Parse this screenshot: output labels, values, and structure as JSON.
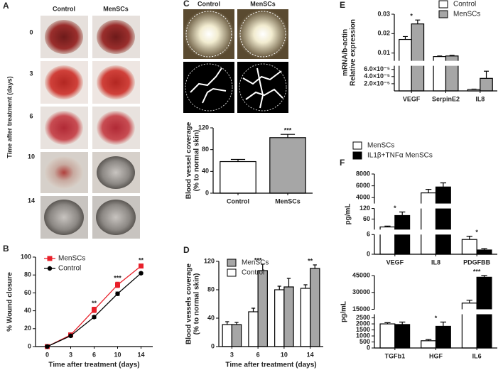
{
  "panel_labels": [
    "A",
    "B",
    "C",
    "D",
    "E",
    "F"
  ],
  "panel_a": {
    "columns": [
      "Control",
      "MenSCs"
    ],
    "rows": [
      "0",
      "3",
      "6",
      "10",
      "14"
    ],
    "y_label": "Time after treatment (days)"
  },
  "panel_c": {
    "columns": [
      "Control",
      "MenSCs"
    ]
  },
  "chart_data": [
    {
      "type": "line",
      "categories": [
        "0",
        "3",
        "6",
        "10",
        "14"
      ],
      "series": [
        {
          "name": "MenSCs",
          "color": "#e8202a",
          "marker": "square",
          "values": [
            0,
            13,
            41,
            69,
            90
          ],
          "errors": [
            1,
            1.5,
            3,
            3,
            2
          ]
        },
        {
          "name": "Control",
          "color": "#000000",
          "marker": "circle",
          "values": [
            0,
            12,
            33,
            59,
            82
          ],
          "errors": [
            1,
            1,
            1.5,
            2,
            1
          ]
        }
      ],
      "ylim": [
        0,
        100
      ],
      "yticks": [
        0,
        20,
        40,
        60,
        80,
        100
      ],
      "y_label": [
        "% Wound closure"
      ],
      "x_label": "Time after treatment (days)",
      "legend": "upper left",
      "annotations": [
        {
          "text": "**",
          "category": "6"
        },
        {
          "text": "***",
          "category": "10"
        },
        {
          "text": "**",
          "category": "14"
        }
      ]
    },
    {
      "type": "bar",
      "categories": [
        "Control",
        "MenSCs"
      ],
      "colors": [
        "#ffffff",
        "#a6a6a6"
      ],
      "values": [
        58,
        102
      ],
      "errors": [
        4,
        6
      ],
      "ylim": [
        0,
        120
      ],
      "yticks": [
        0,
        40,
        80,
        120
      ],
      "y_label": [
        "Blood vessel coverage",
        "(% to normal skin)"
      ],
      "annotations": [
        {
          "text": "***",
          "category": "MenSCs"
        }
      ]
    },
    {
      "type": "bar",
      "categories": [
        "3",
        "6",
        "10",
        "14"
      ],
      "series": [
        {
          "name": "Control",
          "color": "#ffffff",
          "values": [
            31,
            49,
            80,
            82
          ],
          "errors": [
            4,
            5,
            5,
            5
          ]
        },
        {
          "name": "MenSCs",
          "color": "#a6a6a6",
          "values": [
            31,
            107,
            84,
            110
          ],
          "errors": [
            3,
            9,
            12,
            5
          ]
        }
      ],
      "ylim": [
        0,
        120
      ],
      "yticks": [
        0,
        40,
        80,
        120
      ],
      "y_label": [
        "Blood vessels coverage",
        "(% to normal skin)"
      ],
      "x_label": "Time after treatment (days)",
      "legend": "upper left",
      "legend_reversed": true,
      "annotations": [
        {
          "text": "***",
          "category": "6"
        },
        {
          "text": "**",
          "category": "14"
        }
      ]
    },
    {
      "type": "broken-bar",
      "categories": [
        "VEGF",
        "SerpinE2",
        "IL8"
      ],
      "series": [
        {
          "name": "Control",
          "color": "#ffffff",
          "values": [
            0.017,
            0.0082,
            4e-06
          ],
          "errors": [
            0.0015,
            0.0003,
            1e-06
          ]
        },
        {
          "name": "MenSCs",
          "color": "#a6a6a6",
          "values": [
            0.025,
            0.0085,
            3.5e-05
          ],
          "errors": [
            0.002,
            0.0003,
            2e-05
          ]
        }
      ],
      "segments": [
        {
          "ylim": [
            0,
            7e-05
          ],
          "yticks": [
            {
              "value": 2e-05,
              "label": "2.0×10⁻⁵"
            },
            {
              "value": 4e-05,
              "label": "4.0×10⁻⁵"
            },
            {
              "value": 6e-05,
              "label": "6.0×10⁻⁵"
            }
          ]
        },
        {
          "ylim": [
            0.006,
            0.03
          ],
          "yticks": [
            0.01,
            0.02,
            0.03
          ]
        }
      ],
      "y_label": [
        "mRNA/b-actin",
        "Relative expression"
      ],
      "legend": "upper right",
      "annotations": [
        {
          "text": "*",
          "category": "VEGF"
        }
      ]
    },
    {
      "type": "broken-bar",
      "categories": [
        "VEGF",
        "IL8",
        "PDGFBB"
      ],
      "series": [
        {
          "name": "MenSCs",
          "color": "#ffffff",
          "values": [
            15,
            4800,
            4.5
          ],
          "errors": [
            5,
            600,
            1
          ]
        },
        {
          "name": "IL1β+TNFα MenSCs",
          "color": "#000000",
          "values": [
            80,
            5800,
            1.3
          ],
          "errors": [
            20,
            700,
            0.4
          ]
        }
      ],
      "segments": [
        {
          "ylim": [
            0,
            6
          ],
          "yticks": [
            0,
            6
          ]
        },
        {
          "ylim": [
            0,
            120
          ],
          "yticks": [
            60,
            120
          ]
        },
        {
          "ylim": [
            3000,
            8000
          ],
          "yticks": [
            4000,
            6000,
            8000
          ]
        }
      ],
      "y_label": [
        "pg/mL"
      ],
      "legend": "above left",
      "annotations": [
        {
          "text": "*",
          "category": "VEGF"
        },
        {
          "text": "*",
          "category": "PDGFBB"
        }
      ]
    },
    {
      "type": "broken-bar",
      "categories": [
        "TGFb1",
        "HGF",
        "IL6"
      ],
      "series": [
        {
          "name": "MenSCs",
          "color": "#ffffff",
          "values": [
            2000,
            600,
            20500
          ],
          "errors": [
            100,
            100,
            2500
          ]
        },
        {
          "name": "IL1β+TNFα MenSCs",
          "color": "#000000",
          "values": [
            1950,
            1800,
            43500
          ],
          "errors": [
            200,
            350,
            1500
          ]
        }
      ],
      "segments": [
        {
          "ylim": [
            0,
            2800
          ],
          "yticks": [
            0,
            500,
            1000,
            1500,
            2000,
            2500
          ]
        },
        {
          "ylim": [
            15000,
            45000
          ],
          "yticks": [
            15000,
            30000,
            45000
          ]
        }
      ],
      "y_label": [
        "pg/mL"
      ],
      "annotations": [
        {
          "text": "*",
          "category": "HGF"
        },
        {
          "text": "***",
          "category": "IL6"
        }
      ]
    }
  ]
}
